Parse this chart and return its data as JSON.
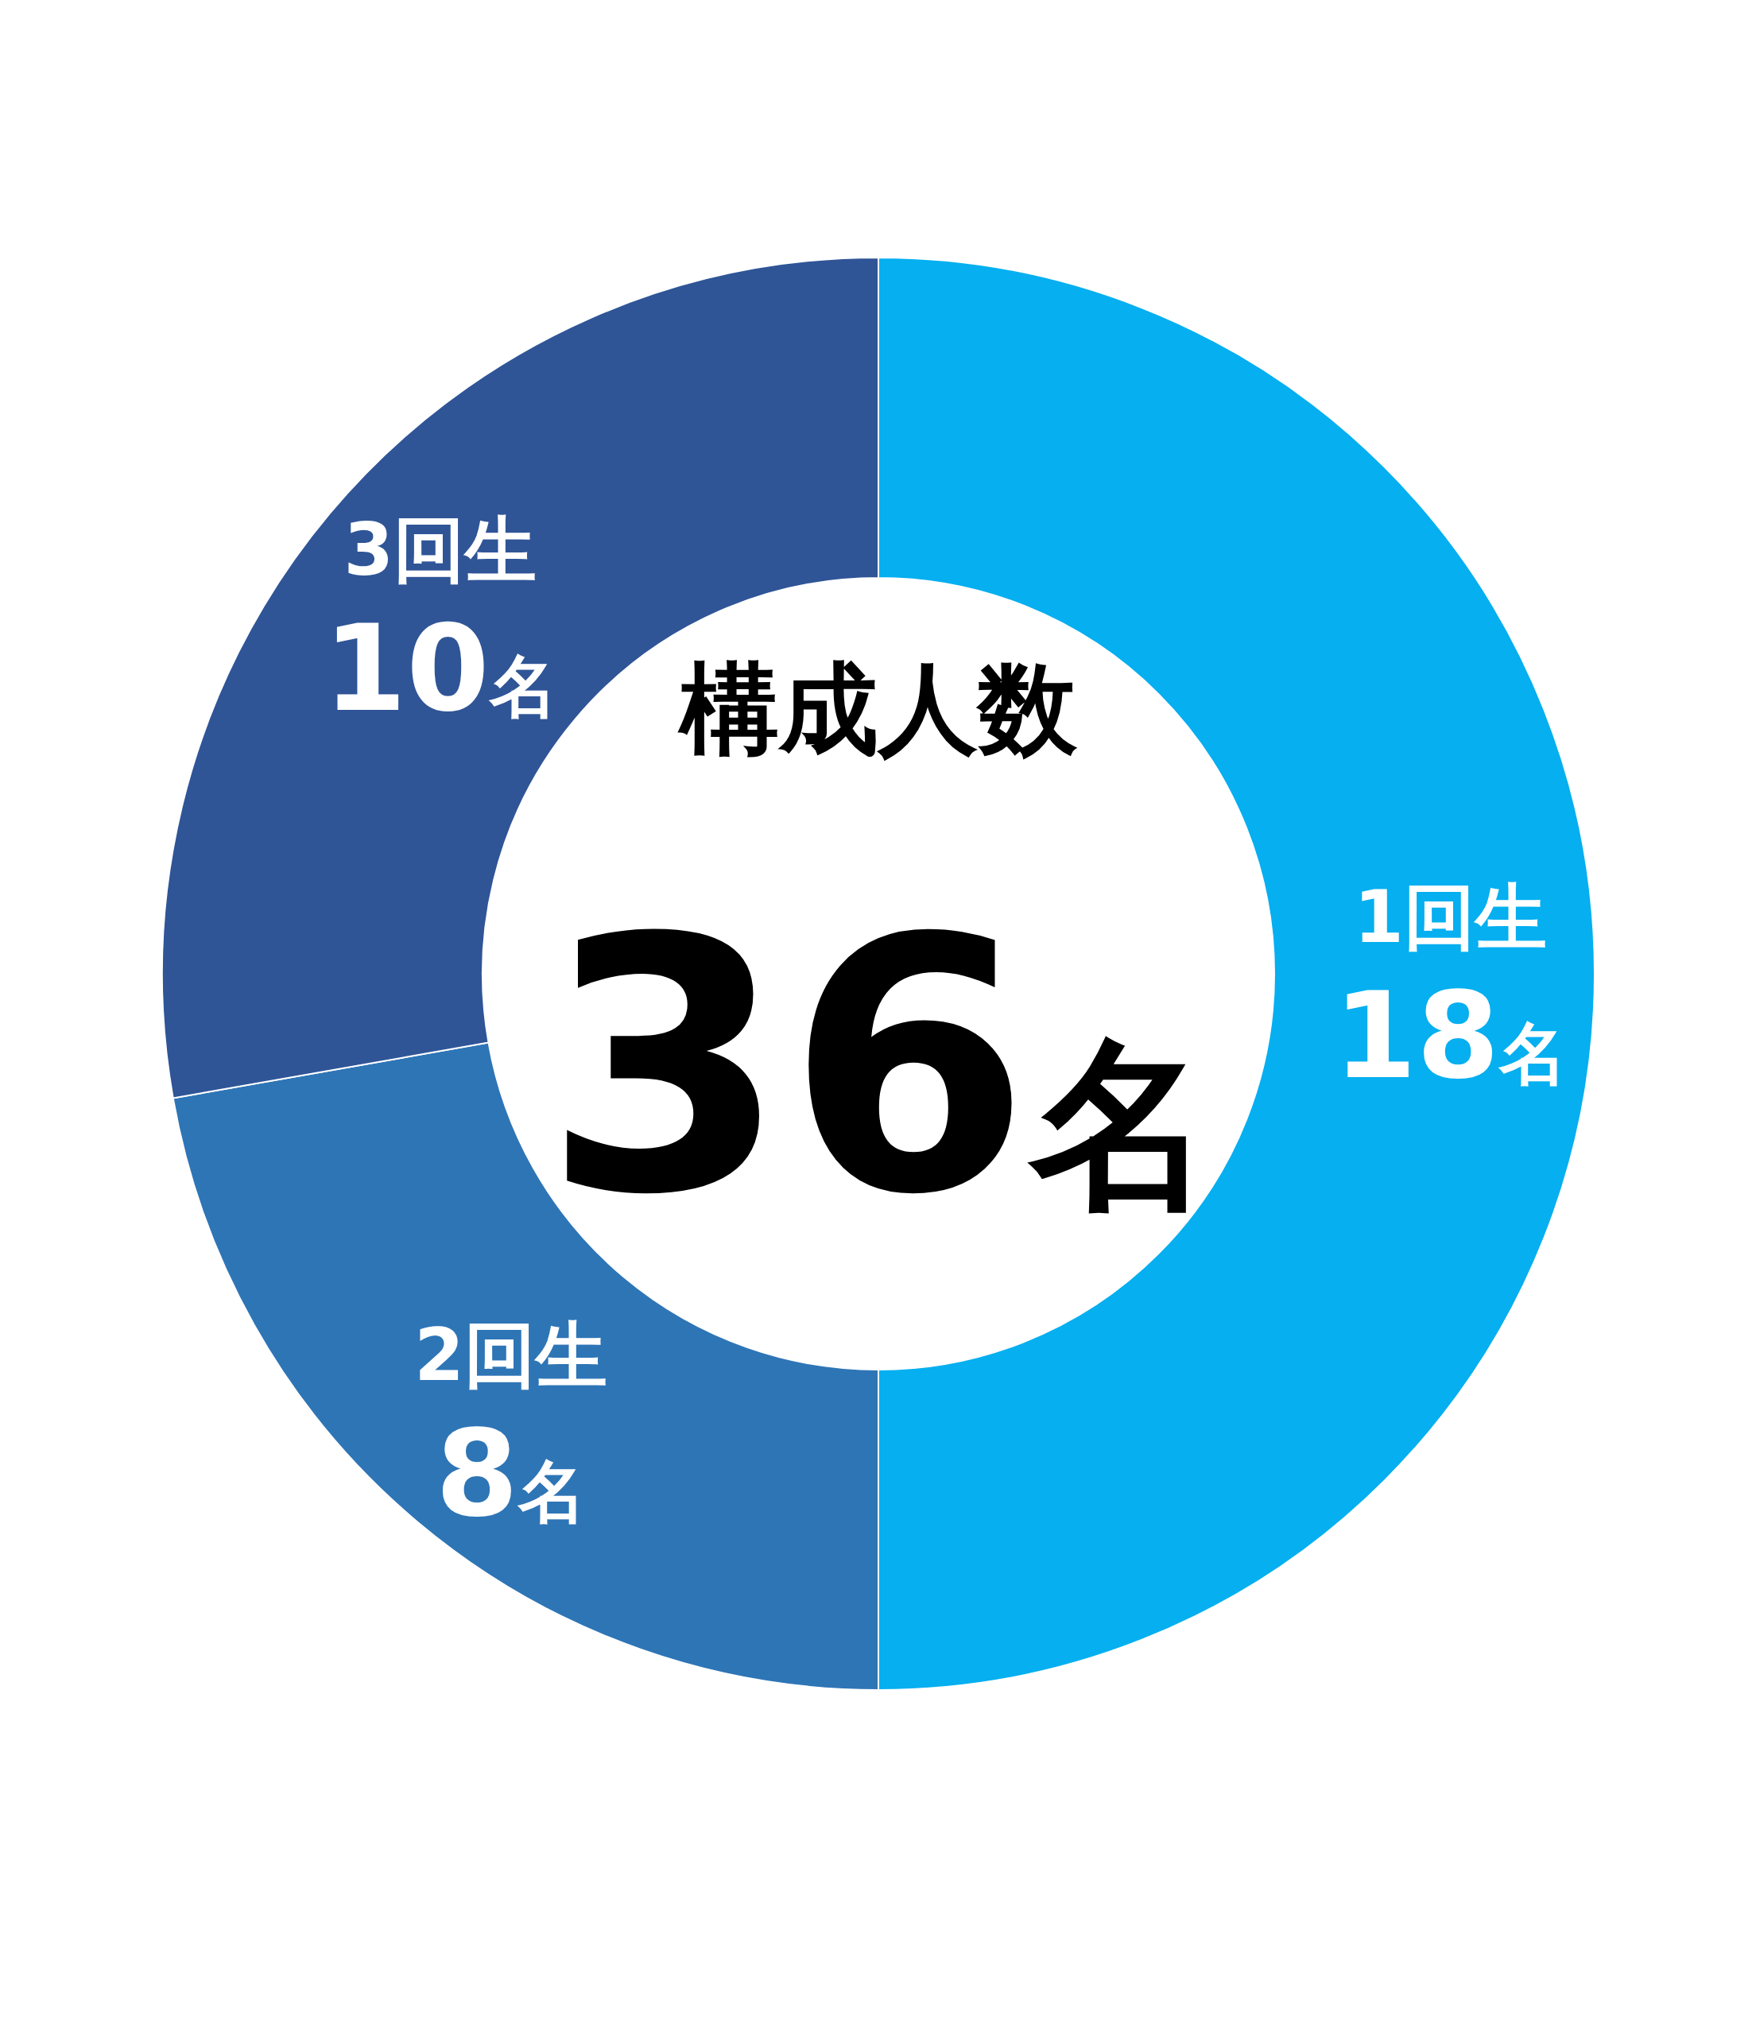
{
  "chart_data": {
    "type": "donut",
    "title": "構成人数",
    "categories": [
      "1回生",
      "2回生",
      "3回生"
    ],
    "values": [
      18,
      8,
      10
    ],
    "colors": [
      "#05aff0",
      "#2e75b6",
      "#2f5597"
    ],
    "value_labels": [
      "18名",
      "8名",
      "10名"
    ],
    "annotations": [
      "36名"
    ]
  }
}
